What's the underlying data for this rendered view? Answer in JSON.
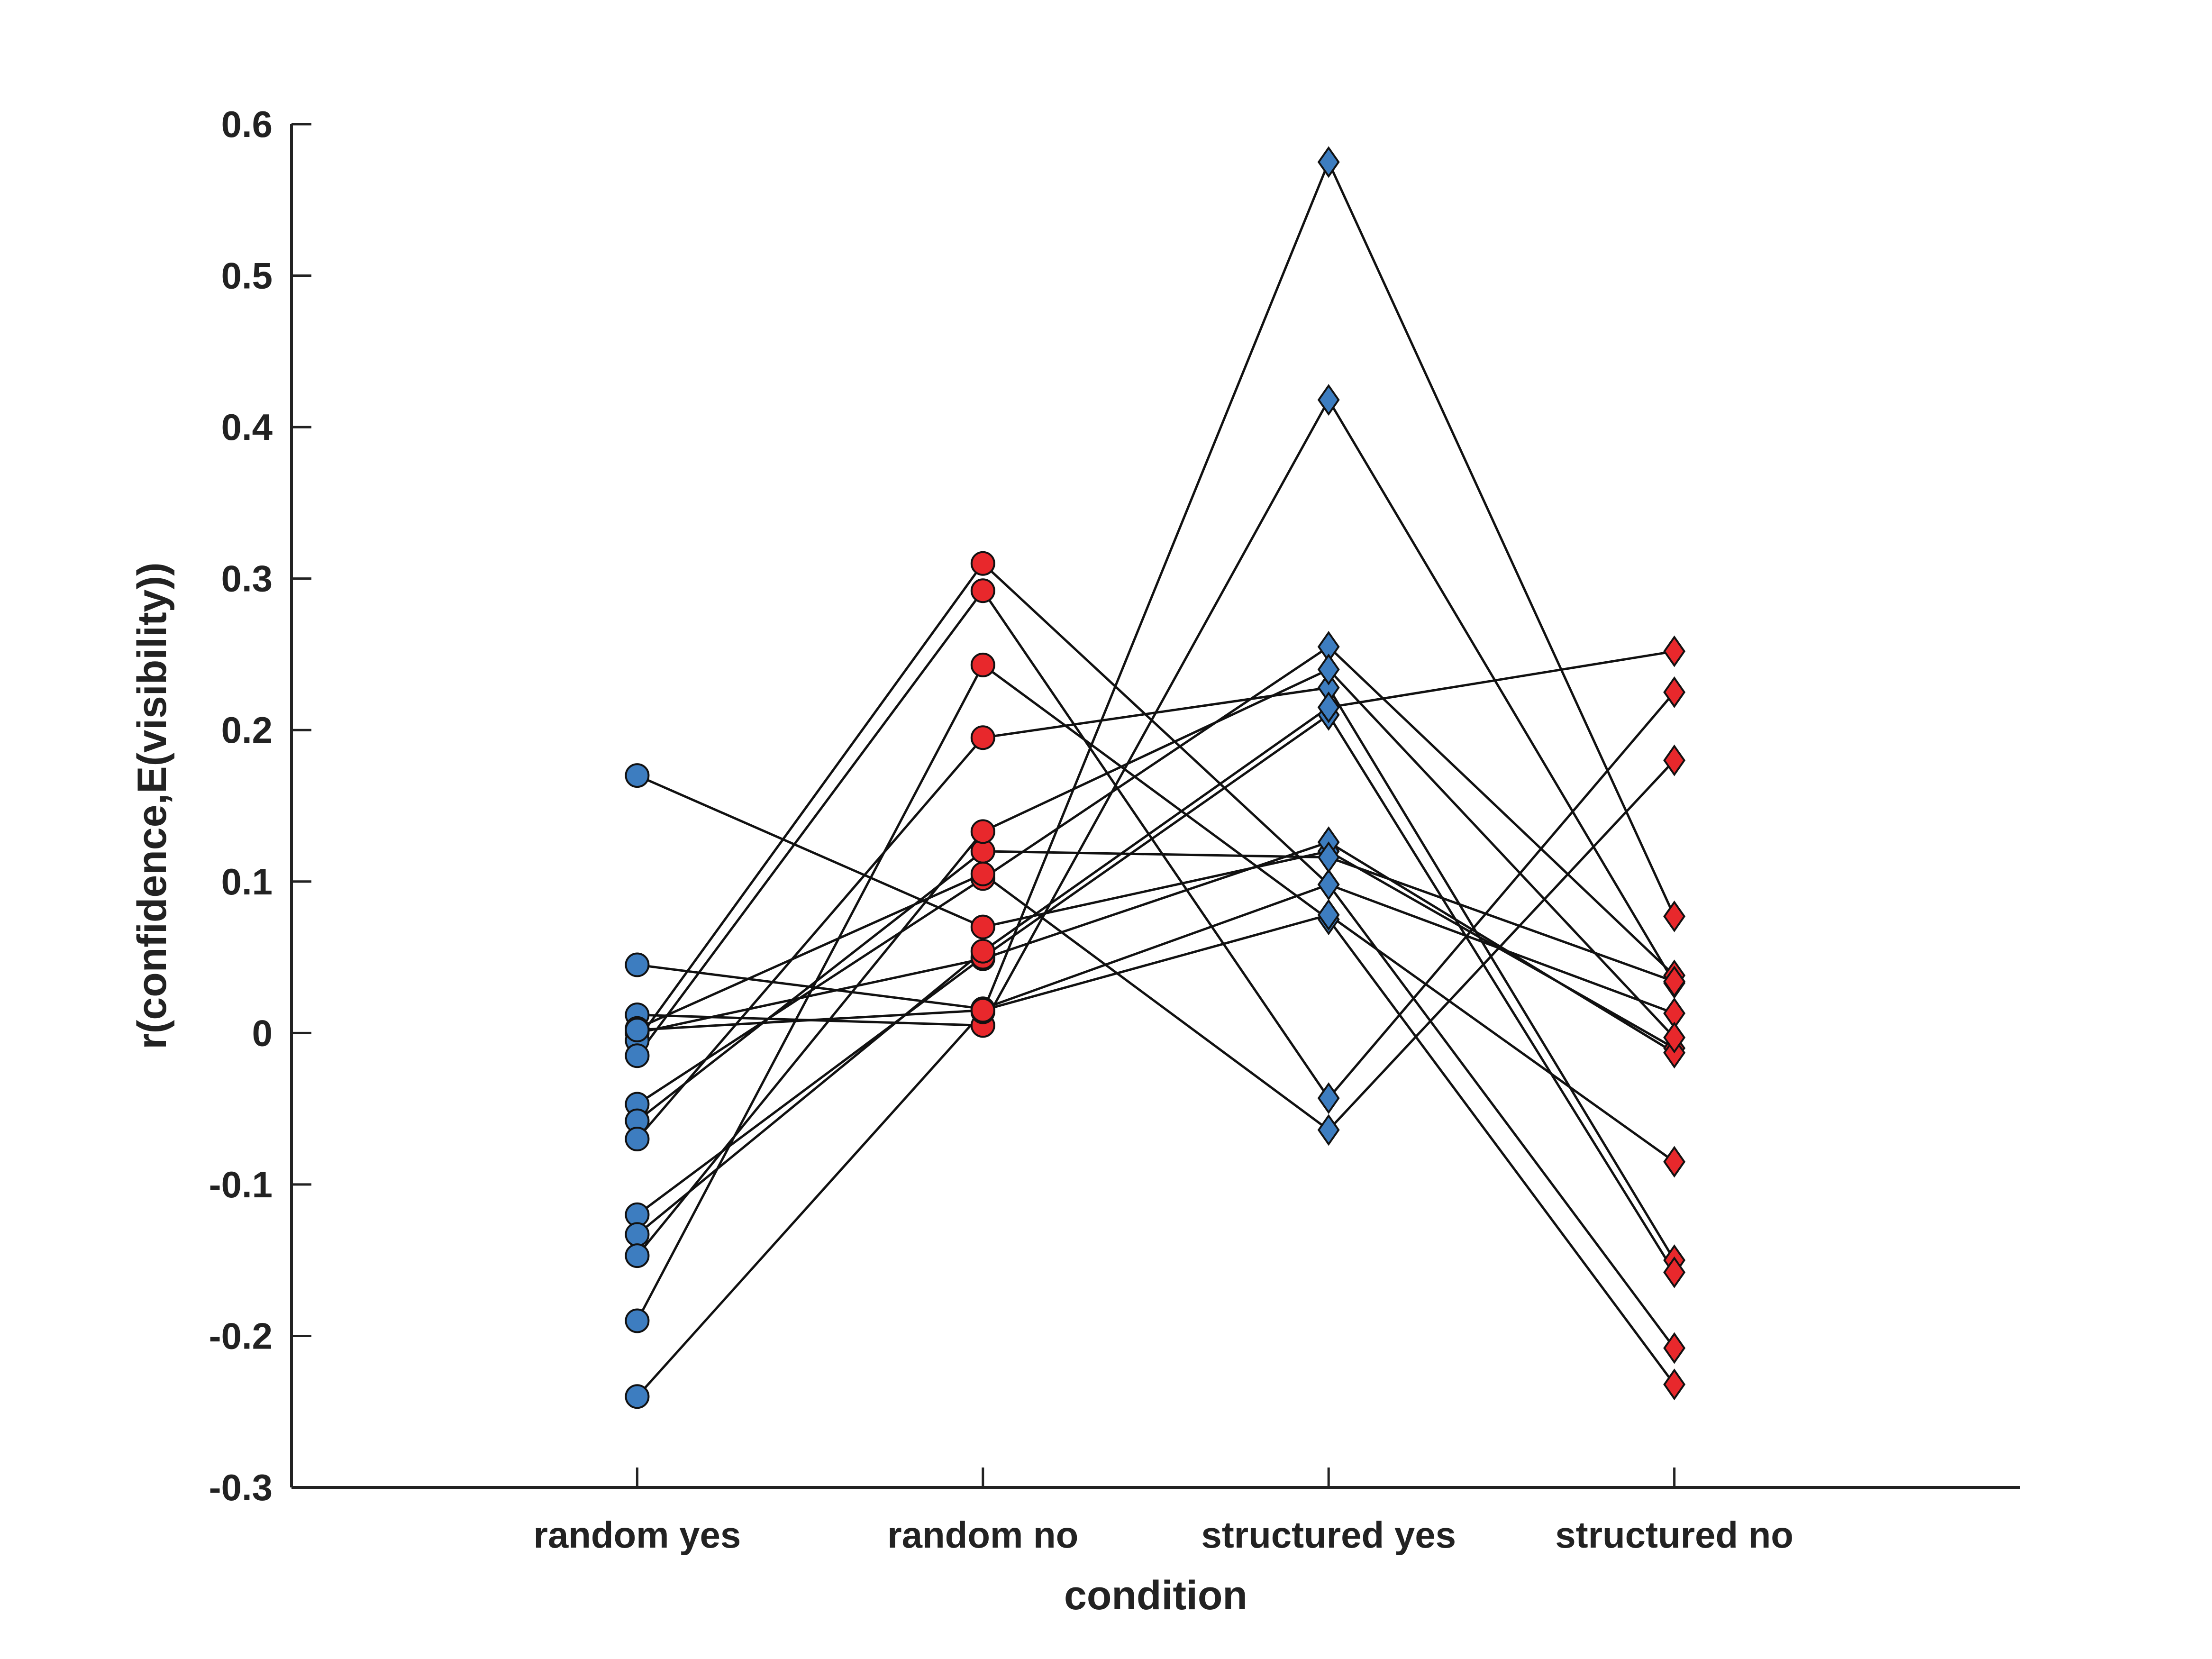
{
  "chart_data": {
    "type": "line",
    "xlabel": "condition",
    "ylabel": "r(confidence,E(visibility))",
    "ylim": [
      -0.3,
      0.6
    ],
    "yticks": [
      -0.3,
      -0.2,
      -0.1,
      0,
      0.1,
      0.2,
      0.3,
      0.4,
      0.5,
      0.6
    ],
    "ytick_labels": [
      "-0.3",
      "-0.2",
      "-0.1",
      "0",
      "0.1",
      "0.2",
      "0.3",
      "0.4",
      "0.5",
      "0.6"
    ],
    "categories": [
      "random yes",
      "random no",
      "structured yes",
      "structured no"
    ],
    "xlim": [
      0,
      5
    ],
    "grid": false,
    "legend": "none",
    "line_color": "#111111",
    "marker_edge": "#111111",
    "marker_colors": [
      "#3d7dc0",
      "#e8282c",
      "#3d7dc0",
      "#e8282c"
    ],
    "marker_shapes": [
      "circle",
      "circle",
      "diamond",
      "diamond"
    ],
    "series": [
      {
        "values": [
          0.17,
          0.07,
          0.12,
          -0.01
        ]
      },
      {
        "values": [
          0.045,
          0.016,
          0.098,
          0.013
        ]
      },
      {
        "values": [
          0.012,
          0.005,
          0.418,
          0.033
        ]
      },
      {
        "values": [
          0.0,
          0.049,
          0.126,
          -0.013
        ]
      },
      {
        "values": [
          -0.005,
          0.31,
          0.098,
          -0.208
        ]
      },
      {
        "values": [
          -0.015,
          0.292,
          -0.043,
          0.225
        ]
      },
      {
        "values": [
          -0.047,
          0.102,
          0.255,
          0.038
        ]
      },
      {
        "values": [
          -0.058,
          0.12,
          0.116,
          0.034
        ]
      },
      {
        "values": [
          -0.07,
          0.195,
          0.228,
          -0.15
        ]
      },
      {
        "values": [
          -0.12,
          0.05,
          0.21,
          -0.158
        ]
      },
      {
        "values": [
          -0.133,
          0.054,
          0.215,
          0.252
        ]
      },
      {
        "values": [
          -0.147,
          0.133,
          0.24,
          -0.003
        ]
      },
      {
        "values": [
          -0.19,
          0.243,
          0.075,
          -0.232
        ]
      },
      {
        "values": [
          -0.24,
          0.014,
          0.575,
          0.077
        ]
      },
      {
        "values": [
          0.003,
          0.105,
          -0.064,
          0.18
        ]
      },
      {
        "values": [
          0.002,
          0.015,
          0.078,
          -0.085
        ]
      }
    ]
  }
}
